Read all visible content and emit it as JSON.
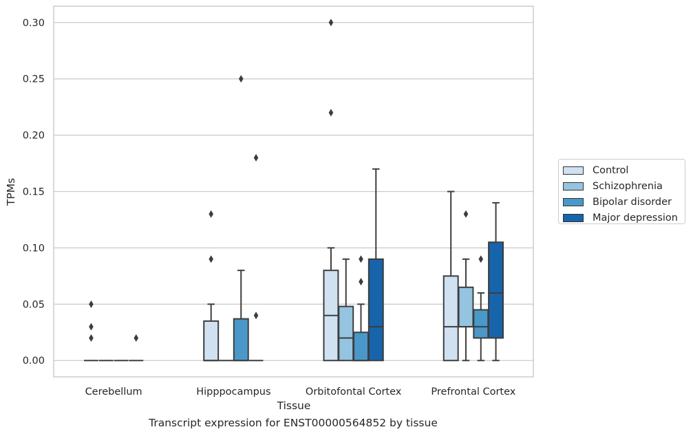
{
  "chart_data": {
    "type": "boxplot",
    "title": "",
    "xlabel": "Tissue",
    "ylabel": "TPMs",
    "caption": "Transcript expression for ENST00000564852 by tissue",
    "ylim": [
      -0.0145,
      0.3145
    ],
    "yticks": [
      "0.00",
      "0.05",
      "0.10",
      "0.15",
      "0.20",
      "0.25",
      "0.30"
    ],
    "grid": "horizontal",
    "legend_placement": "right",
    "categories": [
      "Cerebellum",
      "Hipppocampus",
      "Orbitofontal Cortex",
      "Prefrontal Cortex"
    ],
    "series": [
      {
        "name": "Control",
        "color": "#d0e1f2",
        "boxes": [
          {
            "whislo": 0,
            "q1": 0,
            "med": 0,
            "q3": 0,
            "whishi": 0,
            "fliers": [
              0.05,
              0.03,
              0.02
            ]
          },
          {
            "whislo": 0,
            "q1": 0,
            "med": 0,
            "q3": 0.035,
            "whishi": 0.05,
            "fliers": [
              0.13,
              0.09
            ]
          },
          {
            "whislo": 0,
            "q1": 0,
            "med": 0.04,
            "q3": 0.08,
            "whishi": 0.1,
            "fliers": [
              0.3,
              0.22
            ]
          },
          {
            "whislo": 0,
            "q1": 0,
            "med": 0.03,
            "q3": 0.075,
            "whishi": 0.15,
            "fliers": []
          }
        ]
      },
      {
        "name": "Schizophrenia",
        "color": "#94c4df",
        "boxes": [
          {
            "whislo": 0,
            "q1": 0,
            "med": 0,
            "q3": 0,
            "whishi": 0,
            "fliers": []
          },
          {
            "whislo": 0,
            "q1": 0,
            "med": 0,
            "q3": 0,
            "whishi": 0,
            "fliers": []
          },
          {
            "whislo": 0,
            "q1": 0,
            "med": 0.02,
            "q3": 0.048,
            "whishi": 0.09,
            "fliers": []
          },
          {
            "whislo": 0,
            "q1": 0.03,
            "med": 0.03,
            "q3": 0.065,
            "whishi": 0.09,
            "fliers": [
              0.13
            ]
          }
        ]
      },
      {
        "name": "Bipolar disorder",
        "color": "#4a98c9",
        "boxes": [
          {
            "whislo": 0,
            "q1": 0,
            "med": 0,
            "q3": 0,
            "whishi": 0,
            "fliers": []
          },
          {
            "whislo": 0,
            "q1": 0,
            "med": 0,
            "q3": 0.037,
            "whishi": 0.08,
            "fliers": [
              0.25
            ]
          },
          {
            "whislo": 0,
            "q1": 0,
            "med": 0,
            "q3": 0.025,
            "whishi": 0.05,
            "fliers": [
              0.09,
              0.07
            ]
          },
          {
            "whislo": 0,
            "q1": 0.02,
            "med": 0.03,
            "q3": 0.045,
            "whishi": 0.06,
            "fliers": [
              0.09
            ]
          }
        ]
      },
      {
        "name": "Major depression",
        "color": "#1764ab",
        "boxes": [
          {
            "whislo": 0,
            "q1": 0,
            "med": 0,
            "q3": 0,
            "whishi": 0,
            "fliers": [
              0.02
            ]
          },
          {
            "whislo": 0,
            "q1": 0,
            "med": 0,
            "q3": 0,
            "whishi": 0,
            "fliers": [
              0.18,
              0.04
            ]
          },
          {
            "whislo": 0,
            "q1": 0,
            "med": 0.03,
            "q3": 0.09,
            "whishi": 0.17,
            "fliers": []
          },
          {
            "whislo": 0,
            "q1": 0.02,
            "med": 0.06,
            "q3": 0.105,
            "whishi": 0.14,
            "fliers": []
          }
        ]
      }
    ]
  }
}
